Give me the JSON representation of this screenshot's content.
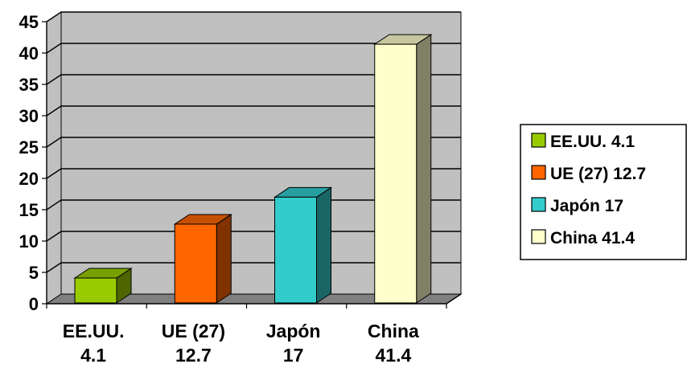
{
  "chart_data": {
    "type": "bar",
    "categories": [
      [
        "EE.UU.",
        "4.1"
      ],
      [
        "UE (27)",
        "12.7"
      ],
      [
        "Japón",
        "17"
      ],
      [
        "China",
        "41.4"
      ]
    ],
    "values": [
      4.1,
      12.7,
      17,
      41.4
    ],
    "colors": [
      "#99cc00",
      "#ff6600",
      "#33cccc",
      "#ffffcc"
    ],
    "ylim": [
      0,
      45
    ],
    "yticks": [
      0,
      5,
      10,
      15,
      20,
      25,
      30,
      35,
      40,
      45
    ],
    "grid": true,
    "legend": {
      "placement": "right",
      "entries": [
        "EE.UU. 4.1",
        "UE (27) 12.7",
        "Japón 17",
        "China 41.4"
      ]
    },
    "title": "",
    "xlabel": "",
    "ylabel": ""
  }
}
